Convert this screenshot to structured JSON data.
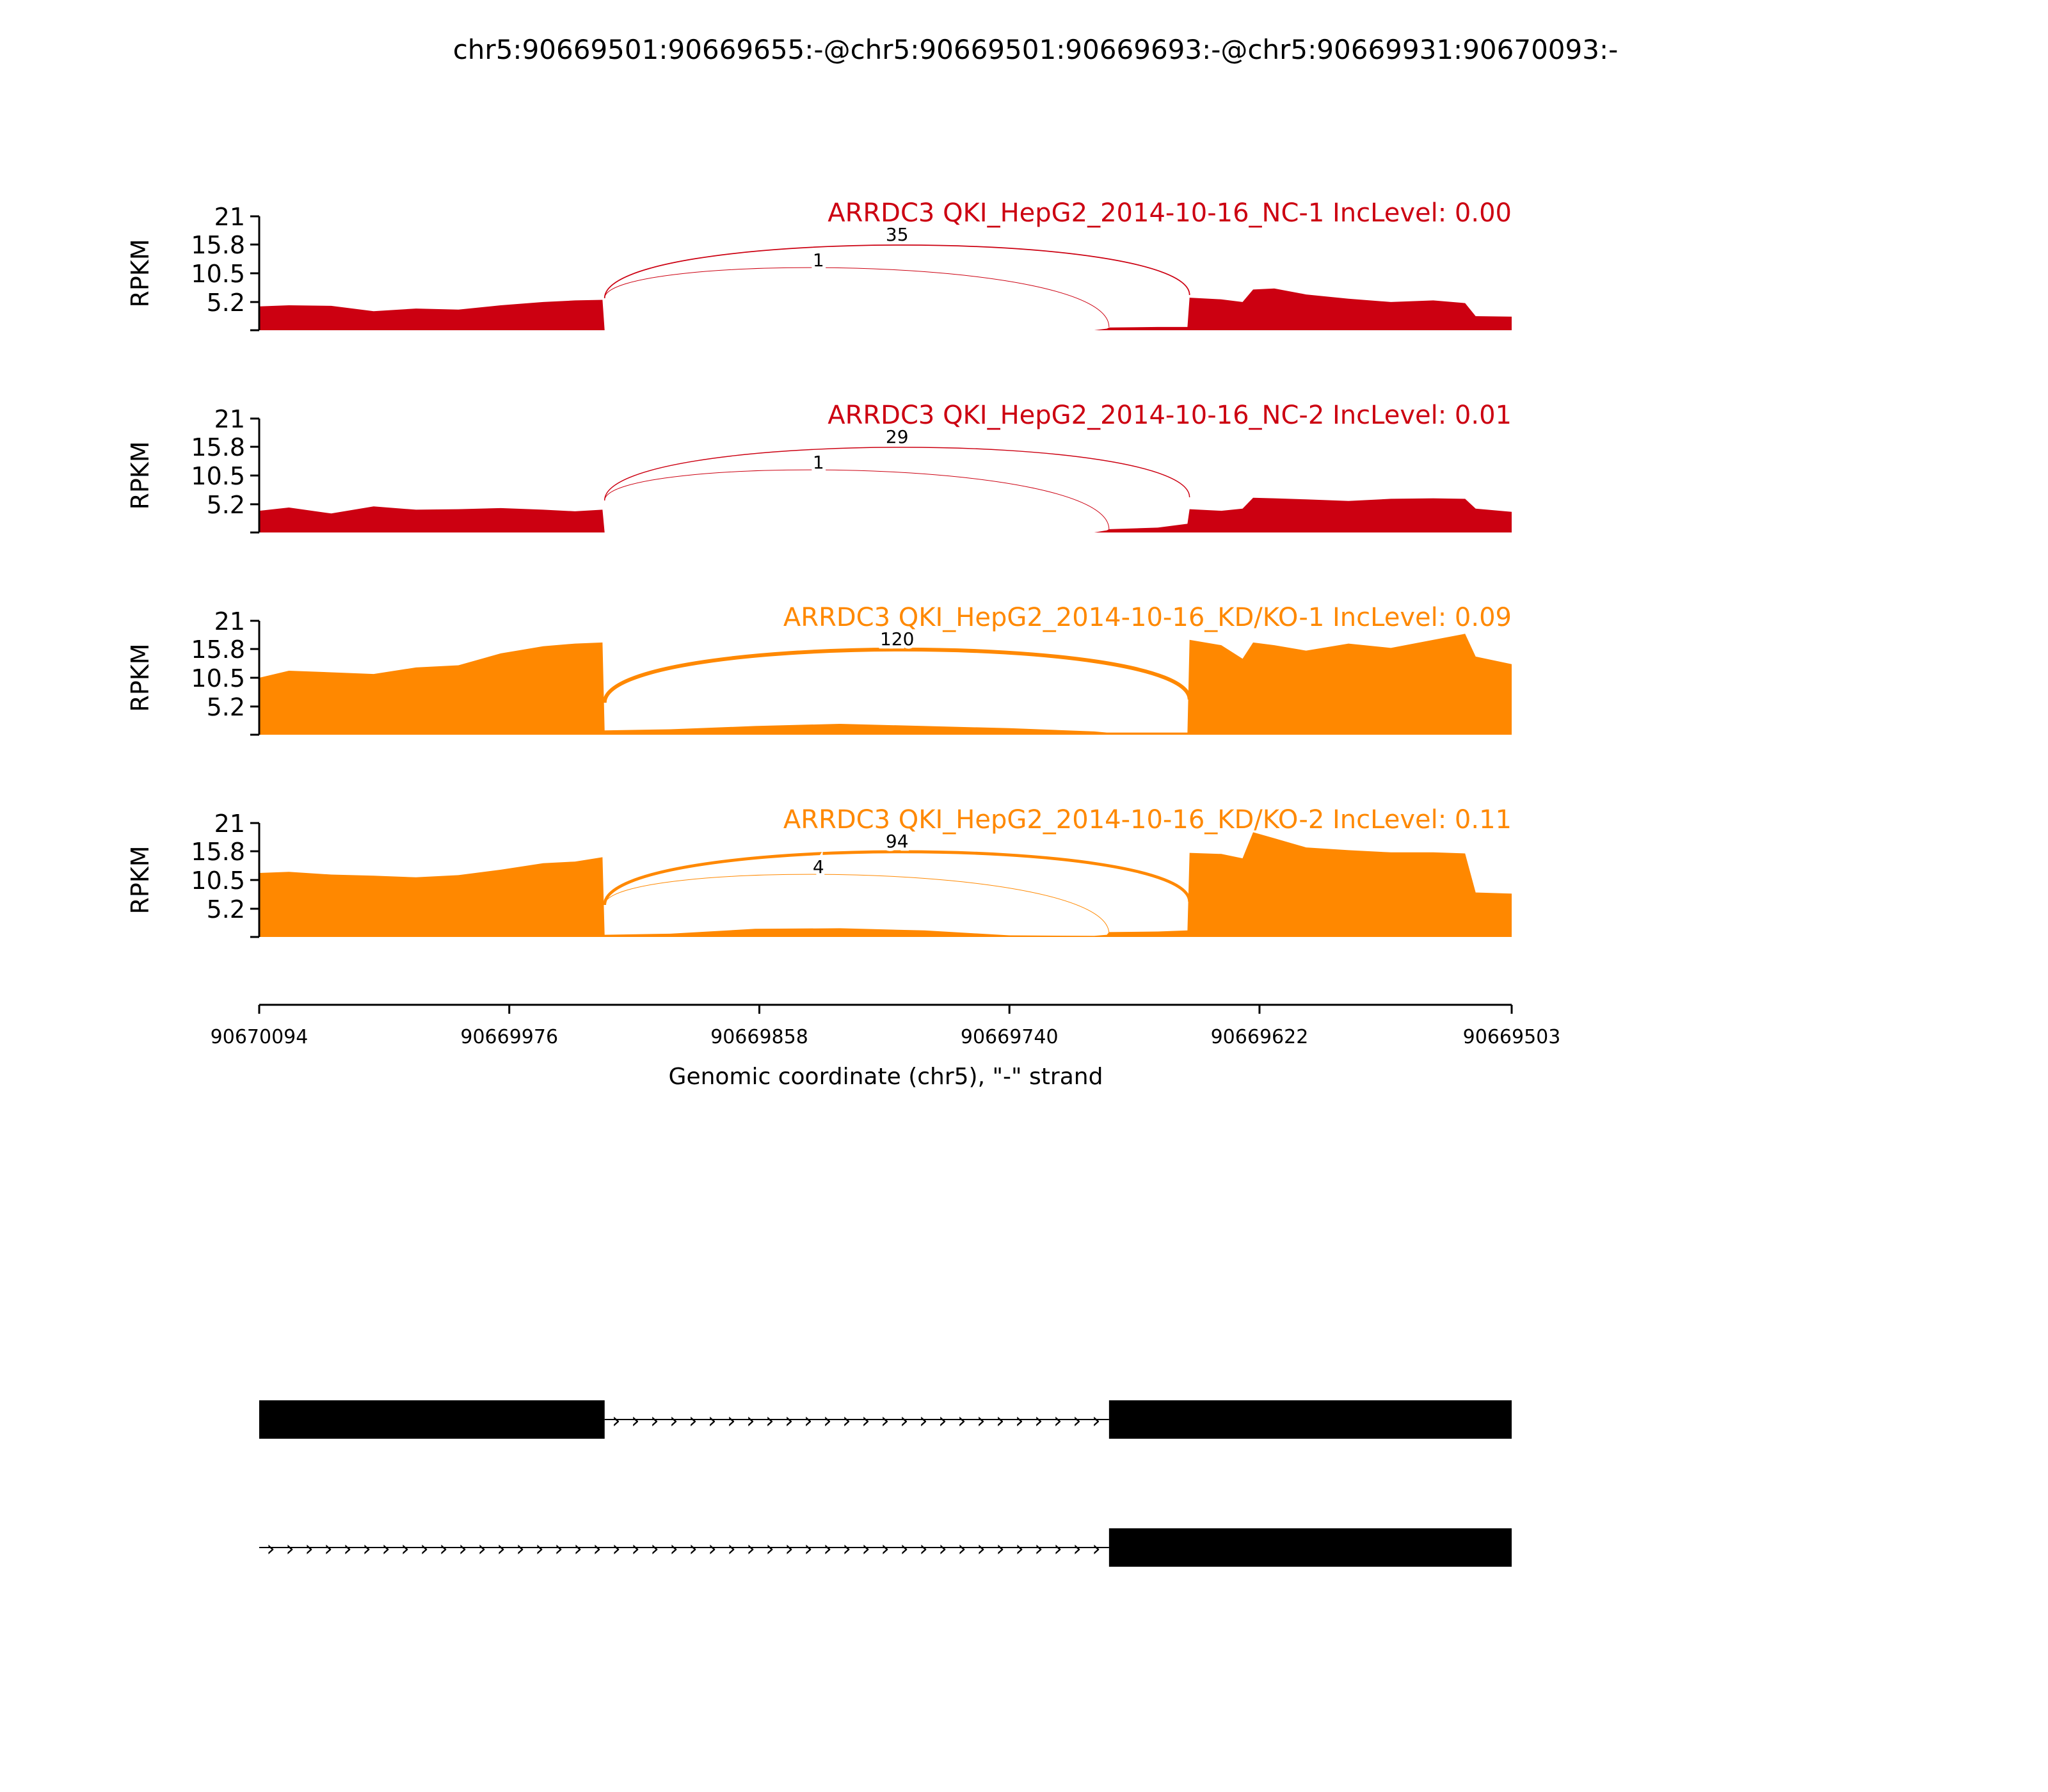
{
  "chart_data": {
    "type": "area",
    "title": "chr5:90669501:90669655:-@chr5:90669501:90669693:-@chr5:90669931:90670093:-",
    "xlabel": "Genomic coordinate (chr5), \"-\" strand",
    "ylabel": "RPKM",
    "xlim": [
      90670094,
      90669503
    ],
    "x_ticks": [
      "90670094",
      "90669976",
      "90669858",
      "90669740",
      "90669622",
      "90669503"
    ],
    "ylim": [
      0,
      21
    ],
    "y_ticks": [
      "21",
      "15.8",
      "10.5",
      "5.2"
    ],
    "grid": false,
    "exon_boundaries": {
      "upstream_exon_end": 90669931,
      "junction_end_long": 90669693,
      "downstream_exon_start": 90669655
    },
    "samples": [
      {
        "label": "ARRDC3 QKI_HepG2_2014-10-16_NC-1 IncLevel: 0.00",
        "color": "#cc0011",
        "coverage": {
          "x": [
            90670094,
            90670080,
            90670060,
            90670040,
            90670020,
            90670000,
            90669980,
            90669960,
            90669945,
            90669932,
            90669931,
            90669900,
            90669860,
            90669820,
            90669780,
            90669740,
            90669700,
            90669694,
            90669693,
            90669670,
            90669656,
            90669655,
            90669640,
            90669630,
            90669625,
            90669615,
            90669600,
            90669580,
            90669560,
            90669540,
            90669525,
            90669520,
            90669503
          ],
          "y": [
            4.4,
            4.6,
            4.5,
            3.5,
            4.0,
            3.8,
            4.6,
            5.2,
            5.5,
            5.6,
            0.0,
            0.0,
            0.0,
            0.0,
            0.0,
            0.0,
            0.0,
            0.3,
            0.5,
            0.6,
            0.6,
            6.0,
            5.7,
            5.2,
            7.5,
            7.7,
            6.6,
            5.8,
            5.2,
            5.5,
            5.0,
            2.6,
            2.5
          ]
        },
        "junctions": [
          {
            "from": 90669931,
            "to": 90669655,
            "count": "35"
          },
          {
            "from": 90669931,
            "to": 90669693,
            "count": "1"
          }
        ]
      },
      {
        "label": "ARRDC3 QKI_HepG2_2014-10-16_NC-2 IncLevel: 0.01",
        "color": "#cc0011",
        "coverage": {
          "x": [
            90670094,
            90670080,
            90670060,
            90670040,
            90670020,
            90670000,
            90669980,
            90669960,
            90669945,
            90669932,
            90669931,
            90669900,
            90669860,
            90669820,
            90669780,
            90669740,
            90669700,
            90669694,
            90669693,
            90669670,
            90669656,
            90669655,
            90669640,
            90669630,
            90669625,
            90669615,
            90669600,
            90669580,
            90669560,
            90669540,
            90669525,
            90669520,
            90669503
          ],
          "y": [
            4.0,
            4.6,
            3.5,
            4.8,
            4.2,
            4.3,
            4.5,
            4.2,
            3.9,
            4.2,
            0.0,
            0.0,
            0.0,
            0.0,
            0.0,
            0.0,
            0.0,
            0.4,
            0.6,
            0.9,
            1.6,
            4.3,
            4.0,
            4.4,
            6.4,
            6.3,
            6.1,
            5.8,
            6.2,
            6.3,
            6.2,
            4.4,
            3.8
          ]
        },
        "junctions": [
          {
            "from": 90669931,
            "to": 90669655,
            "count": "29"
          },
          {
            "from": 90669931,
            "to": 90669693,
            "count": "1"
          }
        ]
      },
      {
        "label": "ARRDC3 QKI_HepG2_2014-10-16_KD/KO-1 IncLevel: 0.09",
        "color": "#ff8800",
        "coverage": {
          "x": [
            90670094,
            90670080,
            90670060,
            90670040,
            90670020,
            90670000,
            90669980,
            90669960,
            90669945,
            90669932,
            90669931,
            90669900,
            90669860,
            90669820,
            90669780,
            90669740,
            90669700,
            90669694,
            90669693,
            90669670,
            90669656,
            90669655,
            90669640,
            90669630,
            90669625,
            90669615,
            90669600,
            90669580,
            90669560,
            90669540,
            90669525,
            90669520,
            90669503
          ],
          "y": [
            10.5,
            11.8,
            11.5,
            11.2,
            12.4,
            12.8,
            15.0,
            16.3,
            16.8,
            17.0,
            0.8,
            1.0,
            1.6,
            2.0,
            1.6,
            1.2,
            0.6,
            0.4,
            0.4,
            0.4,
            0.4,
            17.5,
            16.5,
            14.0,
            17.0,
            16.5,
            15.5,
            16.8,
            16.0,
            17.5,
            18.6,
            14.4,
            13.0
          ]
        },
        "junctions": [
          {
            "from": 90669931,
            "to": 90669655,
            "count": "120"
          }
        ]
      },
      {
        "label": "ARRDC3 QKI_HepG2_2014-10-16_KD/KO-2 IncLevel: 0.11",
        "color": "#ff8800",
        "coverage": {
          "x": [
            90670094,
            90670080,
            90670060,
            90670040,
            90670020,
            90670000,
            90669980,
            90669960,
            90669945,
            90669932,
            90669931,
            90669900,
            90669860,
            90669820,
            90669780,
            90669740,
            90669700,
            90669694,
            90669693,
            90669670,
            90669656,
            90669655,
            90669640,
            90669630,
            90669625,
            90669615,
            90669600,
            90669580,
            90669560,
            90669540,
            90669525,
            90669520,
            90669503
          ],
          "y": [
            11.8,
            12.0,
            11.5,
            11.3,
            11.0,
            11.4,
            12.4,
            13.6,
            13.9,
            14.7,
            0.4,
            0.6,
            1.5,
            1.6,
            1.2,
            0.3,
            0.2,
            0.4,
            0.9,
            1.0,
            1.2,
            15.5,
            15.3,
            14.5,
            19.3,
            18.2,
            16.5,
            16.0,
            15.6,
            15.6,
            15.4,
            8.2,
            8.0
          ]
        },
        "junctions": [
          {
            "from": 90669931,
            "to": 90669655,
            "count": "94"
          },
          {
            "from": 90669931,
            "to": 90669693,
            "count": "4"
          }
        ]
      }
    ],
    "transcripts": [
      {
        "exons": [
          [
            90670094,
            90669931
          ],
          [
            90669693,
            90669503
          ]
        ],
        "intron_strand_arrow": "›"
      },
      {
        "exons": [
          [
            90669693,
            90669503
          ]
        ],
        "intron_start": 90670094,
        "intron_strand_arrow": "›"
      }
    ]
  }
}
